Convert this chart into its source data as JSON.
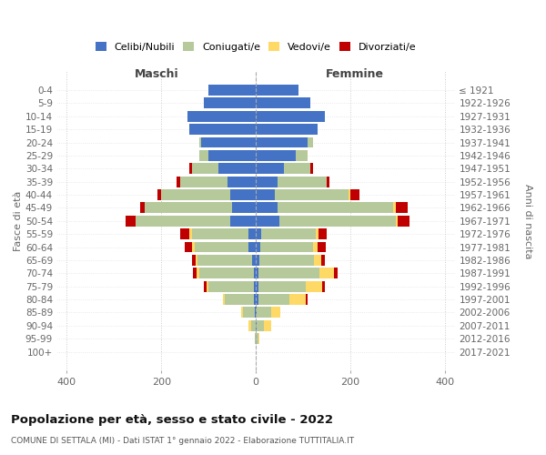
{
  "age_groups": [
    "0-4",
    "5-9",
    "10-14",
    "15-19",
    "20-24",
    "25-29",
    "30-34",
    "35-39",
    "40-44",
    "45-49",
    "50-54",
    "55-59",
    "60-64",
    "65-69",
    "70-74",
    "75-79",
    "80-84",
    "85-89",
    "90-94",
    "95-99",
    "100+"
  ],
  "birth_years": [
    "2017-2021",
    "2012-2016",
    "2007-2011",
    "2002-2006",
    "1997-2001",
    "1992-1996",
    "1987-1991",
    "1982-1986",
    "1977-1981",
    "1972-1976",
    "1967-1971",
    "1962-1966",
    "1957-1961",
    "1952-1956",
    "1947-1951",
    "1942-1946",
    "1937-1941",
    "1932-1936",
    "1927-1931",
    "1922-1926",
    "≤ 1921"
  ],
  "males_single": [
    100,
    110,
    145,
    140,
    115,
    100,
    80,
    60,
    55,
    50,
    55,
    15,
    15,
    8,
    5,
    5,
    5,
    2,
    0,
    0,
    0
  ],
  "males_married": [
    0,
    0,
    0,
    0,
    5,
    20,
    55,
    100,
    145,
    185,
    200,
    120,
    115,
    115,
    115,
    95,
    60,
    25,
    10,
    2,
    0
  ],
  "males_widowed": [
    0,
    0,
    0,
    0,
    0,
    0,
    0,
    0,
    0,
    0,
    0,
    5,
    5,
    5,
    5,
    5,
    5,
    5,
    5,
    0,
    0
  ],
  "males_divorced": [
    0,
    0,
    0,
    0,
    0,
    0,
    5,
    8,
    8,
    10,
    20,
    20,
    15,
    8,
    8,
    5,
    0,
    0,
    0,
    0,
    0
  ],
  "females_single": [
    90,
    115,
    145,
    130,
    110,
    85,
    60,
    45,
    40,
    45,
    50,
    12,
    10,
    8,
    5,
    5,
    5,
    2,
    2,
    0,
    0
  ],
  "females_married": [
    0,
    0,
    0,
    0,
    10,
    25,
    55,
    105,
    155,
    245,
    245,
    115,
    110,
    115,
    130,
    100,
    65,
    30,
    15,
    5,
    0
  ],
  "females_widowed": [
    0,
    0,
    0,
    0,
    0,
    0,
    0,
    0,
    5,
    5,
    5,
    5,
    10,
    15,
    30,
    35,
    35,
    20,
    15,
    3,
    0
  ],
  "females_divorced": [
    0,
    0,
    0,
    0,
    0,
    0,
    5,
    5,
    18,
    25,
    25,
    18,
    18,
    8,
    8,
    5,
    5,
    0,
    0,
    0,
    0
  ],
  "color_single": "#4472c4",
  "color_married": "#b5c99a",
  "color_widowed": "#ffd966",
  "color_divorced": "#c00000",
  "xlim": 420,
  "title": "Popolazione per età, sesso e stato civile - 2022",
  "subtitle": "COMUNE DI SETTALA (MI) - Dati ISTAT 1° gennaio 2022 - Elaborazione TUTTITALIA.IT",
  "ylabel_left": "Fasce di età",
  "ylabel_right": "Anni di nascita",
  "label_maschi": "Maschi",
  "label_femmine": "Femmine",
  "legend_labels": [
    "Celibi/Nubili",
    "Coniugati/e",
    "Vedovi/e",
    "Divorziati/e"
  ]
}
